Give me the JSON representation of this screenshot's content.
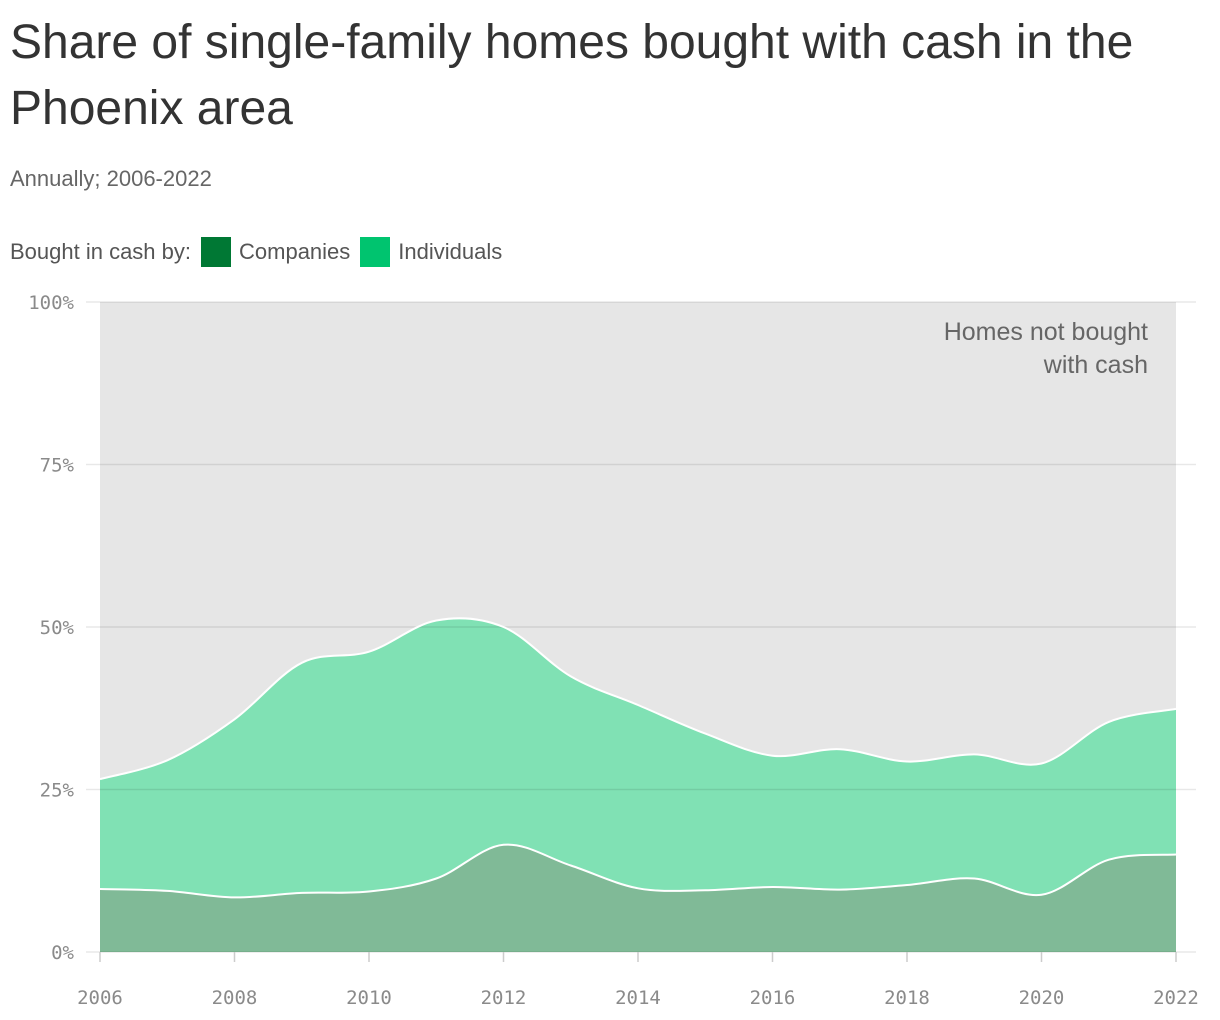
{
  "title": "Share of single-family homes bought with cash in the Phoenix area",
  "subtitle": "Annually; 2006-2022",
  "legend": {
    "prefix": "Bought in cash by:",
    "items": [
      {
        "label": "Companies",
        "color": "#007834"
      },
      {
        "label": "Individuals",
        "color": "#00c46f"
      }
    ]
  },
  "chart_data": {
    "type": "area",
    "stacked": true,
    "x": [
      2006,
      2007,
      2008,
      2009,
      2010,
      2011,
      2012,
      2013,
      2014,
      2015,
      2016,
      2017,
      2018,
      2019,
      2020,
      2021,
      2022
    ],
    "series": [
      {
        "name": "Companies",
        "color": "#80ba97",
        "values": [
          9.7,
          9.4,
          8.4,
          9.1,
          9.3,
          11.3,
          16.5,
          13.3,
          9.8,
          9.5,
          10.0,
          9.6,
          10.3,
          11.3,
          8.8,
          14.2,
          15.0
        ]
      },
      {
        "name": "Individuals",
        "color": "#80e1b4",
        "values": [
          16.9,
          20.1,
          27.4,
          35.4,
          36.9,
          39.7,
          33.5,
          29.1,
          28.2,
          24.1,
          20.2,
          21.6,
          19.0,
          19.1,
          20.2,
          21.2,
          22.4
        ]
      }
    ],
    "remainder_label": "Homes not bought with cash",
    "remainder_color": "#e6e6e6",
    "xticks": [
      "2006",
      "2008",
      "2010",
      "2012",
      "2014",
      "2016",
      "2018",
      "2020",
      "2022"
    ],
    "yticks": [
      "0%",
      "25%",
      "50%",
      "75%",
      "100%"
    ],
    "ylim": [
      0,
      100
    ],
    "xlim": [
      2006,
      2022
    ]
  }
}
